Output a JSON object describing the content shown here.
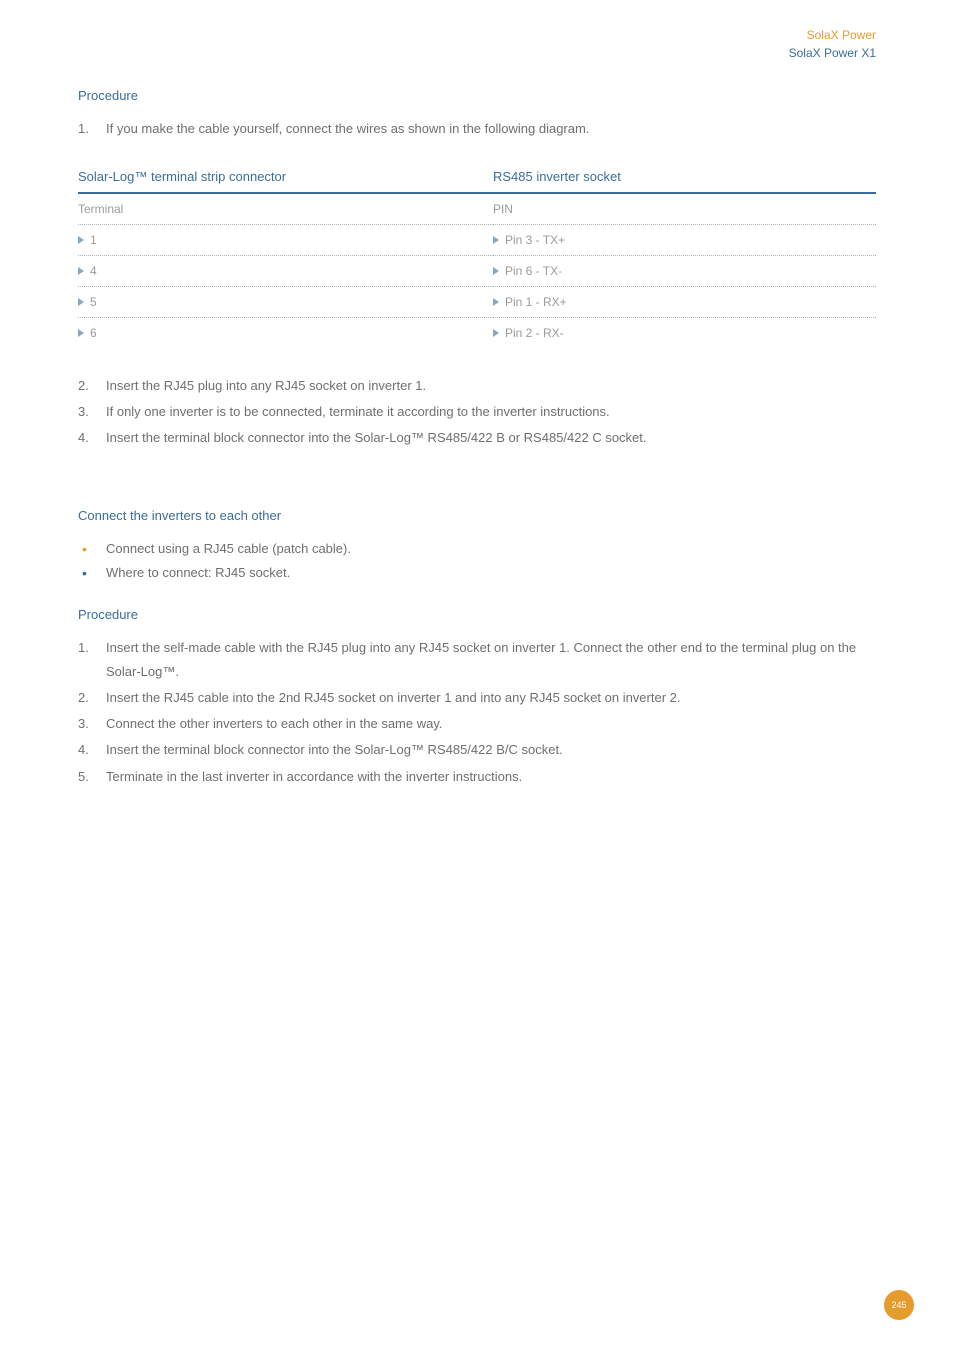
{
  "colors": {
    "orange": "#e69b2d",
    "blue": "#3a6e9a",
    "heading_blue": "#3a6e9a",
    "body_grey": "#6f6f6f",
    "table_grey": "#9b9b9b",
    "triangle": "#8aa8bd",
    "badge_bg": "#e69b2d",
    "badge_text": "#ffffff"
  },
  "header": {
    "line1": "SolaX Power",
    "line2": "SolaX Power X1"
  },
  "sections": {
    "procedure1_title": "Procedure",
    "step1_1": "If you make the cable yourself, connect the wires as shown in the following diagram.",
    "step1_2": "Insert the RJ45 plug into any RJ45 socket on inverter 1.",
    "step1_3": "If only one inverter is to be connected, terminate it according to the inverter instructions.",
    "step1_4": "Insert the terminal block connector into the Solar-Log™ RS485/422 B or RS485/422 C socket.",
    "connect_title": "Connect the inverters to each other",
    "connect_b1": "Connect using a RJ45 cable (patch cable).",
    "connect_b2": "Where to connect: RJ45 socket.",
    "procedure2_title": "Procedure",
    "step2_1": "Insert the self-made cable with the RJ45 plug into any RJ45 socket on inverter 1. Connect the other end to the terminal plug on the Solar-Log™.",
    "step2_2": "Insert the RJ45 cable into the 2nd RJ45 socket on inverter 1 and into any RJ45 socket on inverter 2.",
    "step2_3": "Connect the other inverters to each other in the same way.",
    "step2_4": "Insert the terminal block connector into the Solar-Log™ RS485/422 B/C socket.",
    "step2_5": "Terminate in the last inverter in accordance with the inverter instructions."
  },
  "table": {
    "head_left": "Solar-Log™ terminal strip connector",
    "head_right": "RS485 inverter socket",
    "sub_left": "Terminal",
    "sub_right": "PIN",
    "rows": [
      {
        "l": "1",
        "r": "Pin 3 - TX+"
      },
      {
        "l": "4",
        "r": "Pin 6 - TX-"
      },
      {
        "l": "5",
        "r": "Pin 1 - RX+"
      },
      {
        "l": "6",
        "r": "Pin 2 - RX-"
      }
    ]
  },
  "page_number": "245"
}
